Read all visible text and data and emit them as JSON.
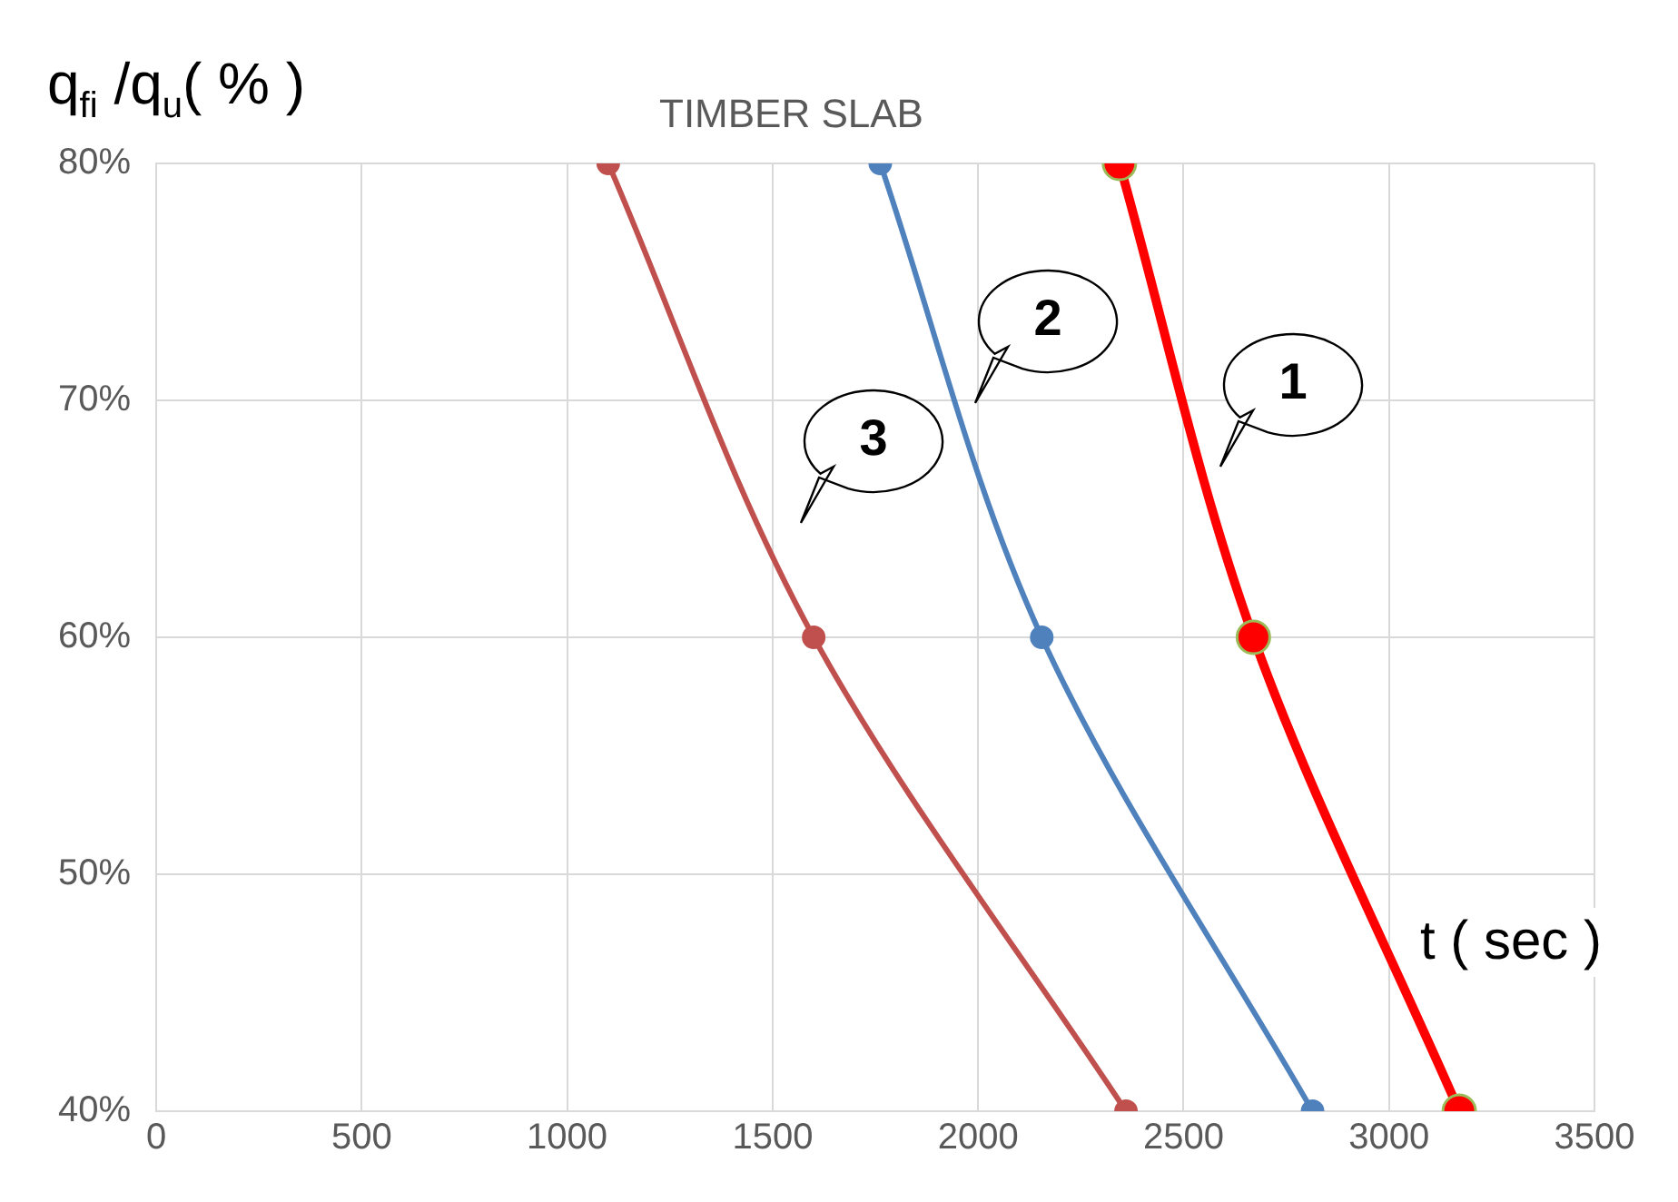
{
  "chart_data": {
    "type": "line",
    "title": "TIMBER SLAB",
    "xlabel": "t ( sec )",
    "ylabel": "q$_{fi}$ /q$_{u}$( % )",
    "xlim": [
      0,
      3500
    ],
    "xticks": [
      0,
      500,
      1000,
      1500,
      2000,
      2500,
      3000,
      3500
    ],
    "ylim": [
      40,
      80
    ],
    "yticks": [
      {
        "value": 40,
        "label": "40%"
      },
      {
        "value": 50,
        "label": "50%"
      },
      {
        "value": 60,
        "label": "60%"
      },
      {
        "value": 70,
        "label": "70%"
      },
      {
        "value": 80,
        "label": "80%"
      }
    ],
    "grid": true,
    "legend": false,
    "marker": "circle",
    "series": [
      {
        "color": "#ff0000",
        "x": [
          2344,
          2670,
          3171
        ],
        "values": [
          80,
          60,
          40
        ]
      },
      {
        "color": "#4f81bd",
        "x": [
          1762,
          2155,
          2814
        ],
        "values": [
          80,
          60,
          40
        ]
      },
      {
        "color": "#c0504d",
        "x": [
          1100,
          1600,
          2360
        ],
        "values": [
          80,
          60,
          40
        ]
      }
    ],
    "annotations": [
      "1",
      "2",
      "3"
    ]
  }
}
